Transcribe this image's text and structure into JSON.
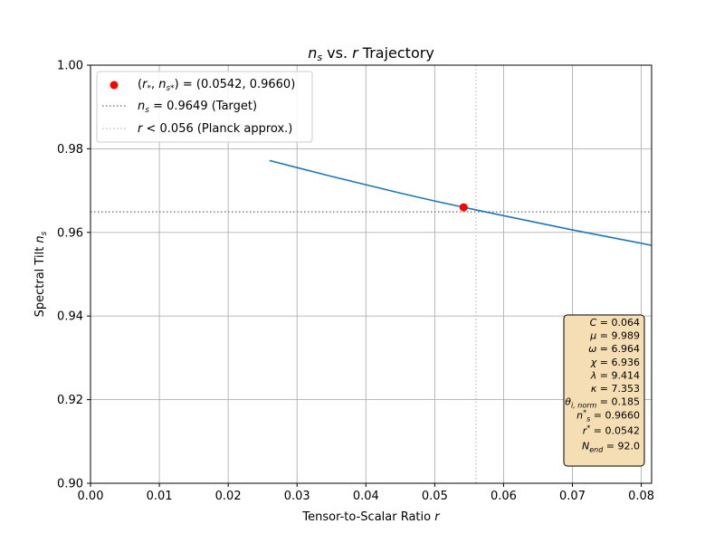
{
  "chart_data": {
    "type": "line",
    "title": "n_s vs. r Trajectory",
    "title_parts": {
      "var1": "n",
      "sub1": "s",
      "mid": " vs. ",
      "var2": "r",
      "end": " Trajectory"
    },
    "xlabel": "Tensor-to-Scalar Ratio r",
    "xlabel_parts": {
      "text": "Tensor-to-Scalar Ratio ",
      "var": "r"
    },
    "ylabel": "Spectral Tilt n_s",
    "ylabel_parts": {
      "text": "Spectral Tilt ",
      "var": "n",
      "sub": "s"
    },
    "xlim": [
      0.0,
      0.0815
    ],
    "ylim": [
      0.9,
      1.0
    ],
    "xticks": [
      0.0,
      0.01,
      0.02,
      0.03,
      0.04,
      0.05,
      0.06,
      0.07,
      0.08
    ],
    "xtick_labels": [
      "0.00",
      "0.01",
      "0.02",
      "0.03",
      "0.04",
      "0.05",
      "0.06",
      "0.07",
      "0.08"
    ],
    "yticks": [
      0.9,
      0.92,
      0.94,
      0.96,
      0.98,
      1.0
    ],
    "ytick_labels": [
      "0.90",
      "0.92",
      "0.94",
      "0.96",
      "0.98",
      "1.00"
    ],
    "grid": true,
    "legend_position": "top-left",
    "colors": {
      "trajectory": "#1f77b4",
      "point": "#ff0000",
      "target_line": "#808080",
      "planck_line": "#c8c8c8",
      "param_box_fill": "#f5deb3",
      "param_box_edge": "#000000"
    },
    "series": [
      {
        "x": [
          0.026,
          0.03,
          0.035,
          0.04,
          0.045,
          0.05,
          0.0542,
          0.06,
          0.065,
          0.07,
          0.075,
          0.08,
          0.0815
        ],
        "y": [
          0.9772,
          0.9755,
          0.9734,
          0.9714,
          0.9694,
          0.9675,
          0.966,
          0.964,
          0.9623,
          0.9606,
          0.959,
          0.9574,
          0.9569
        ]
      }
    ],
    "highlight_point": {
      "x": 0.0542,
      "y": 0.966
    },
    "hlines": [
      {
        "y": 0.9649,
        "style": "dotted"
      }
    ],
    "vlines": [
      {
        "x": 0.056,
        "style": "dotted"
      }
    ],
    "legend": [
      {
        "marker": "red-dot",
        "text": "(r*, n_s*) = (0.0542, 0.9660)",
        "parts": {
          "open": "(",
          "v1": "r",
          "s1": "*",
          "comma": ", ",
          "v2": "n",
          "s2": "s*",
          "close": ") = (0.0542, 0.9660)"
        }
      },
      {
        "marker": "gray-dotted-line",
        "text": "n_s = 0.9649 (Target)",
        "parts": {
          "v": "n",
          "s": "s",
          "rest": " = 0.9649 (Target)"
        }
      },
      {
        "marker": "light-dotted-line",
        "text": "r < 0.056 (Planck approx.)",
        "parts": {
          "v": "r",
          "rest": " < 0.056 (Planck approx.)"
        }
      }
    ],
    "annotation_box": {
      "params": [
        {
          "sym": "C",
          "sub": "",
          "sup": "",
          "value": "0.064"
        },
        {
          "sym": "μ",
          "sub": "",
          "sup": "",
          "value": "9.989"
        },
        {
          "sym": "ω",
          "sub": "",
          "sup": "",
          "value": "6.964"
        },
        {
          "sym": "χ",
          "sub": "",
          "sup": "",
          "value": "6.936"
        },
        {
          "sym": "λ",
          "sub": "",
          "sup": "",
          "value": "9.414"
        },
        {
          "sym": "κ",
          "sub": "",
          "sup": "",
          "value": "7.353"
        },
        {
          "sym": "θ",
          "sub": "i, norm",
          "sup": "",
          "value": "0.185"
        },
        {
          "sym": "n",
          "sub": "s",
          "sup": "*",
          "value": "0.9660"
        },
        {
          "sym": "r",
          "sub": "",
          "sup": "*",
          "value": "0.0542"
        },
        {
          "sym": "N",
          "sub": "end",
          "sup": "",
          "value": "92.0"
        }
      ]
    }
  }
}
